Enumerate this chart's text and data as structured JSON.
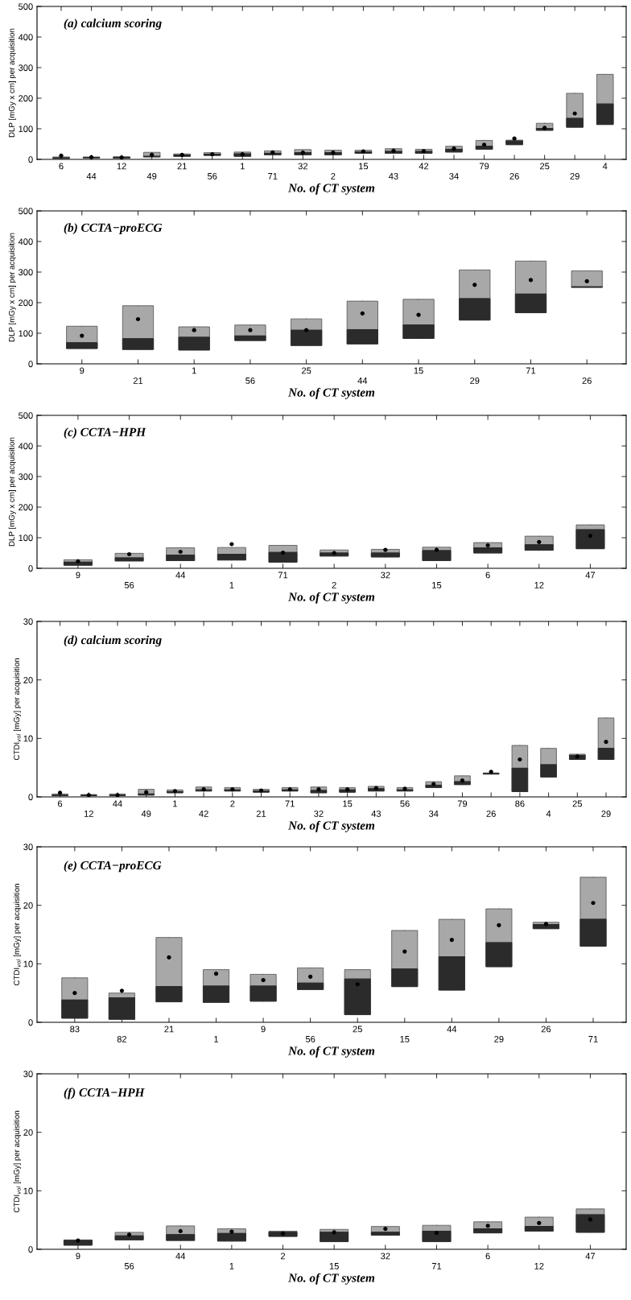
{
  "chart_data": [
    {
      "type": "box",
      "title": "(a) calcium scoring",
      "xlabel": "No. of CT system",
      "ylabel": "DLP [mGy x cm] per acquisition",
      "marker": "circle",
      "ylim": [
        0,
        500
      ],
      "yticks": [
        0,
        100,
        200,
        300,
        400,
        500
      ],
      "categories": [
        "6",
        "44",
        "12",
        "49",
        "21",
        "56",
        "1",
        "71",
        "32",
        "2",
        "15",
        "43",
        "42",
        "34",
        "79",
        "26",
        "25",
        "29",
        "4"
      ],
      "series": [
        {
          "color": "#a8a8a8",
          "boxes": [
            {
              "low": 3,
              "q1": 3,
              "median": 5,
              "q3": 8,
              "high": 8,
              "mean": 12
            },
            {
              "low": 5,
              "q1": 5,
              "median": 6,
              "q3": 8,
              "high": 8,
              "mean": 7
            },
            {
              "low": 4,
              "q1": 4,
              "median": 6,
              "q3": 9,
              "high": 9,
              "mean": 6
            },
            {
              "low": 8,
              "q1": 8,
              "median": 10,
              "q3": 23,
              "high": 23,
              "mean": 15
            },
            {
              "low": 10,
              "q1": 10,
              "median": 14,
              "q3": 18,
              "high": 18,
              "mean": 15
            },
            {
              "low": 13,
              "q1": 13,
              "median": 17,
              "q3": 22,
              "high": 22,
              "mean": 17
            },
            {
              "low": 10,
              "q1": 10,
              "median": 18,
              "q3": 24,
              "high": 24,
              "mean": 17
            },
            {
              "low": 15,
              "q1": 15,
              "median": 20,
              "q3": 28,
              "high": 28,
              "mean": 23
            },
            {
              "low": 15,
              "q1": 15,
              "median": 22,
              "q3": 32,
              "high": 32,
              "mean": 22
            },
            {
              "low": 15,
              "q1": 15,
              "median": 22,
              "q3": 30,
              "high": 30,
              "mean": 22
            },
            {
              "low": 20,
              "q1": 20,
              "median": 24,
              "q3": 30,
              "high": 30,
              "mean": 26
            },
            {
              "low": 20,
              "q1": 20,
              "median": 26,
              "q3": 35,
              "high": 35,
              "mean": 28
            },
            {
              "low": 20,
              "q1": 20,
              "median": 26,
              "q3": 33,
              "high": 33,
              "mean": 27
            },
            {
              "low": 24,
              "q1": 24,
              "median": 33,
              "q3": 43,
              "high": 43,
              "mean": 35
            },
            {
              "low": 33,
              "q1": 33,
              "median": 43,
              "q3": 62,
              "high": 62,
              "mean": 48
            },
            {
              "low": 48,
              "q1": 48,
              "median": 60,
              "q3": 63,
              "high": 63,
              "mean": 68
            },
            {
              "low": 95,
              "q1": 95,
              "median": 101,
              "q3": 118,
              "high": 118,
              "mean": 103
            },
            {
              "low": 105,
              "q1": 105,
              "median": 134,
              "q3": 216,
              "high": 216,
              "mean": 150
            },
            {
              "low": 114,
              "q1": 114,
              "median": 181,
              "q3": 278,
              "high": 278
            }
          ]
        }
      ]
    },
    {
      "type": "box",
      "title": "(b) CCTA−proECG",
      "xlabel": "No. of CT system",
      "ylabel": "DLP [mGy x cm] per acquisition",
      "marker": "circle",
      "ylim": [
        0,
        500
      ],
      "yticks": [
        0,
        100,
        200,
        300,
        400,
        500
      ],
      "categories": [
        "9",
        "21",
        "1",
        "56",
        "25",
        "44",
        "15",
        "29",
        "71",
        "26"
      ],
      "series": [
        {
          "color": "#a8a8a8",
          "boxes": [
            {
              "low": 50,
              "q1": 50,
              "median": 69,
              "q3": 123,
              "high": 123,
              "mean": 92
            },
            {
              "low": 47,
              "q1": 47,
              "median": 82,
              "q3": 190,
              "high": 190,
              "mean": 146
            },
            {
              "low": 45,
              "q1": 45,
              "median": 87,
              "q3": 121,
              "high": 121,
              "mean": 110
            },
            {
              "low": 76,
              "q1": 76,
              "median": 91,
              "q3": 127,
              "high": 127,
              "mean": 110
            },
            {
              "low": 60,
              "q1": 60,
              "median": 110,
              "q3": 147,
              "high": 147,
              "mean": 110
            },
            {
              "low": 65,
              "q1": 65,
              "median": 112,
              "q3": 205,
              "high": 205,
              "mean": 165
            },
            {
              "low": 83,
              "q1": 83,
              "median": 127,
              "q3": 211,
              "high": 211,
              "mean": 160
            },
            {
              "low": 143,
              "q1": 143,
              "median": 213,
              "q3": 307,
              "high": 307,
              "mean": 258
            },
            {
              "low": 167,
              "q1": 167,
              "median": 228,
              "q3": 336,
              "high": 336,
              "mean": 274
            },
            {
              "low": 250,
              "q1": 250,
              "median": 252,
              "q3": 304,
              "high": 304,
              "mean": 270
            }
          ]
        }
      ]
    },
    {
      "type": "box",
      "title": "(c) CCTA−HPH",
      "xlabel": "No. of CT system",
      "ylabel": "DLP [mGy x cm] per acquisition",
      "marker": "circle",
      "ylim": [
        0,
        500
      ],
      "yticks": [
        0,
        100,
        200,
        300,
        400,
        500
      ],
      "categories": [
        "9",
        "56",
        "44",
        "1",
        "71",
        "2",
        "32",
        "15",
        "6",
        "12",
        "47"
      ],
      "series": [
        {
          "color": "#a8a8a8",
          "boxes": [
            {
              "low": 10,
              "q1": 10,
              "median": 20,
              "q3": 28,
              "high": 28,
              "mean": 23
            },
            {
              "low": 24,
              "q1": 24,
              "median": 34,
              "q3": 49,
              "high": 49,
              "mean": 46
            },
            {
              "low": 25,
              "q1": 25,
              "median": 43,
              "q3": 67,
              "high": 67,
              "mean": 54
            },
            {
              "low": 27,
              "q1": 27,
              "median": 46,
              "q3": 68,
              "high": 68,
              "mean": 79
            },
            {
              "low": 20,
              "q1": 20,
              "median": 52,
              "q3": 75,
              "high": 75,
              "mean": 51
            },
            {
              "low": 40,
              "q1": 40,
              "median": 50,
              "q3": 60,
              "high": 60,
              "mean": 50
            },
            {
              "low": 37,
              "q1": 37,
              "median": 50,
              "q3": 62,
              "high": 62,
              "mean": 60
            },
            {
              "low": 25,
              "q1": 25,
              "median": 58,
              "q3": 69,
              "high": 69,
              "mean": 60
            },
            {
              "low": 50,
              "q1": 50,
              "median": 67,
              "q3": 84,
              "high": 84,
              "mean": 75
            },
            {
              "low": 59,
              "q1": 59,
              "median": 77,
              "q3": 105,
              "high": 105,
              "mean": 86
            },
            {
              "low": 64,
              "q1": 64,
              "median": 126,
              "q3": 142,
              "high": 142,
              "mean": 106
            }
          ]
        }
      ]
    },
    {
      "type": "box",
      "title": "(d) calcium scoring",
      "xlabel": "No. of CT system",
      "ylabel": "CTDI$_{vol}$ [mGy] per acquisition",
      "marker": "circle",
      "ylim": [
        0,
        30
      ],
      "yticks": [
        0,
        10,
        20,
        30
      ],
      "categories": [
        "6",
        "12",
        "44",
        "49",
        "1",
        "42",
        "2",
        "21",
        "71",
        "32",
        "15",
        "43",
        "56",
        "34",
        "79",
        "26",
        "86",
        "4",
        "25",
        "29"
      ],
      "series": [
        {
          "color": "#a8a8a8",
          "boxes": [
            {
              "low": 0.2,
              "q1": 0.2,
              "median": 0.3,
              "q3": 0.5,
              "high": 0.5,
              "mean": 0.7
            },
            {
              "low": 0.2,
              "q1": 0.2,
              "median": 0.3,
              "q3": 0.4,
              "high": 0.4,
              "mean": 0.3
            },
            {
              "low": 0.2,
              "q1": 0.2,
              "median": 0.3,
              "q3": 0.5,
              "high": 0.5,
              "mean": 0.3
            },
            {
              "low": 0.3,
              "q1": 0.3,
              "median": 0.5,
              "q3": 1.3,
              "high": 1.3,
              "mean": 0.8
            },
            {
              "low": 0.7,
              "q1": 0.7,
              "median": 0.9,
              "q3": 1.2,
              "high": 1.2,
              "mean": 1.0
            },
            {
              "low": 1.0,
              "q1": 1.0,
              "median": 1.2,
              "q3": 1.7,
              "high": 1.7,
              "mean": 1.3
            },
            {
              "low": 1.0,
              "q1": 1.0,
              "median": 1.2,
              "q3": 1.6,
              "high": 1.6,
              "mean": 1.3
            },
            {
              "low": 0.8,
              "q1": 0.8,
              "median": 1.0,
              "q3": 1.3,
              "high": 1.3,
              "mean": 1.1
            },
            {
              "low": 1.0,
              "q1": 1.0,
              "median": 1.2,
              "q3": 1.6,
              "high": 1.6,
              "mean": 1.3
            },
            {
              "low": 0.7,
              "q1": 0.7,
              "median": 1.1,
              "q3": 1.7,
              "high": 1.7,
              "mean": 1.3
            },
            {
              "low": 0.8,
              "q1": 0.8,
              "median": 1.2,
              "q3": 1.6,
              "high": 1.6,
              "mean": 1.3
            },
            {
              "low": 1.0,
              "q1": 1.0,
              "median": 1.4,
              "q3": 1.8,
              "high": 1.8,
              "mean": 1.5
            },
            {
              "low": 1.0,
              "q1": 1.0,
              "median": 1.2,
              "q3": 1.6,
              "high": 1.6,
              "mean": 1.4
            },
            {
              "low": 1.6,
              "q1": 1.6,
              "median": 2.0,
              "q3": 2.6,
              "high": 2.6,
              "mean": 2.2
            },
            {
              "low": 2.1,
              "q1": 2.1,
              "median": 2.6,
              "q3": 3.6,
              "high": 3.6,
              "mean": 2.8
            },
            {
              "low": 3.9,
              "q1": 3.9,
              "median": 4.0,
              "q3": 4.1,
              "high": 4.1,
              "mean": 4.3
            },
            {
              "low": 0.9,
              "q1": 0.9,
              "median": 4.9,
              "q3": 8.8,
              "high": 8.8,
              "mean": 6.4
            },
            {
              "low": 3.4,
              "q1": 3.4,
              "median": 5.5,
              "q3": 8.3,
              "high": 8.3
            },
            {
              "low": 6.4,
              "q1": 6.4,
              "median": 7.1,
              "q3": 7.3,
              "high": 7.3,
              "mean": 6.9
            },
            {
              "low": 6.4,
              "q1": 6.4,
              "median": 8.3,
              "q3": 13.5,
              "high": 13.5,
              "mean": 9.4
            }
          ]
        }
      ]
    },
    {
      "type": "box",
      "title": "(e) CCTA−proECG",
      "xlabel": "No. of CT system",
      "ylabel": "CTDI$_{vol}$ [mGy] per acquisition",
      "marker": "circle",
      "ylim": [
        0,
        30
      ],
      "yticks": [
        0,
        10,
        20,
        30
      ],
      "categories": [
        "83",
        "82",
        "21",
        "1",
        "9",
        "56",
        "25",
        "15",
        "44",
        "29",
        "26",
        "71"
      ],
      "series": [
        {
          "color": "#a8a8a8",
          "boxes": [
            {
              "low": 0.7,
              "q1": 0.7,
              "median": 3.8,
              "q3": 7.6,
              "high": 7.6,
              "mean": 5.0
            },
            {
              "low": 0.5,
              "q1": 0.5,
              "median": 4.2,
              "q3": 5.0,
              "high": 5.0,
              "mean": 5.4
            },
            {
              "low": 3.5,
              "q1": 3.5,
              "median": 6.1,
              "q3": 14.5,
              "high": 14.5,
              "mean": 11.1
            },
            {
              "low": 3.4,
              "q1": 3.4,
              "median": 6.2,
              "q3": 9.0,
              "high": 9.0,
              "mean": 8.3
            },
            {
              "low": 3.6,
              "q1": 3.6,
              "median": 6.2,
              "q3": 8.2,
              "high": 8.2,
              "mean": 7.2
            },
            {
              "low": 5.6,
              "q1": 5.6,
              "median": 6.7,
              "q3": 9.3,
              "high": 9.3,
              "mean": 7.8
            },
            {
              "low": 1.3,
              "q1": 1.3,
              "median": 7.4,
              "q3": 9.0,
              "high": 9.0,
              "mean": 6.5
            },
            {
              "low": 6.1,
              "q1": 6.1,
              "median": 9.1,
              "q3": 15.7,
              "high": 15.7,
              "mean": 12.1
            },
            {
              "low": 5.5,
              "q1": 5.5,
              "median": 11.2,
              "q3": 17.6,
              "high": 17.6,
              "mean": 14.1
            },
            {
              "low": 9.5,
              "q1": 9.5,
              "median": 13.6,
              "q3": 19.4,
              "high": 19.4,
              "mean": 16.6
            },
            {
              "low": 16.0,
              "q1": 16.0,
              "median": 16.7,
              "q3": 17.1,
              "high": 17.1,
              "mean": 16.8
            },
            {
              "low": 13.0,
              "q1": 13.0,
              "median": 17.6,
              "q3": 24.8,
              "high": 24.8,
              "mean": 20.4
            }
          ]
        }
      ]
    },
    {
      "type": "box",
      "title": "(f) CCTA−HPH",
      "xlabel": "No. of CT system",
      "ylabel": "CTDI$_{vol}$ [mGy] per acquisition",
      "marker": "circle",
      "ylim": [
        0,
        30
      ],
      "yticks": [
        0,
        10,
        20,
        30
      ],
      "categories": [
        "9",
        "56",
        "44",
        "1",
        "2",
        "15",
        "32",
        "71",
        "6",
        "12",
        "47"
      ],
      "series": [
        {
          "color": "#a8a8a8",
          "boxes": [
            {
              "low": 0.7,
              "q1": 0.7,
              "median": 1.5,
              "q3": 1.6,
              "high": 1.6,
              "mean": 1.5
            },
            {
              "low": 1.6,
              "q1": 1.6,
              "median": 2.3,
              "q3": 2.9,
              "high": 2.9,
              "mean": 2.5
            },
            {
              "low": 1.5,
              "q1": 1.5,
              "median": 2.5,
              "q3": 4.0,
              "high": 4.0,
              "mean": 3.1
            },
            {
              "low": 1.4,
              "q1": 1.4,
              "median": 2.7,
              "q3": 3.5,
              "high": 3.5,
              "mean": 3.0
            },
            {
              "low": 2.2,
              "q1": 2.2,
              "median": 2.9,
              "q3": 3.1,
              "high": 3.1,
              "mean": 2.7
            },
            {
              "low": 1.3,
              "q1": 1.3,
              "median": 2.9,
              "q3": 3.4,
              "high": 3.4,
              "mean": 2.9
            },
            {
              "low": 2.4,
              "q1": 2.4,
              "median": 2.9,
              "q3": 3.9,
              "high": 3.9,
              "mean": 3.5
            },
            {
              "low": 1.3,
              "q1": 1.3,
              "median": 3.1,
              "q3": 4.1,
              "high": 4.1,
              "mean": 2.8
            },
            {
              "low": 2.8,
              "q1": 2.8,
              "median": 3.5,
              "q3": 4.7,
              "high": 4.7,
              "mean": 4.0
            },
            {
              "low": 3.1,
              "q1": 3.1,
              "median": 3.9,
              "q3": 5.5,
              "high": 5.5,
              "mean": 4.5
            },
            {
              "low": 2.9,
              "q1": 2.9,
              "median": 5.9,
              "q3": 6.9,
              "high": 6.9,
              "mean": 5.1
            }
          ]
        }
      ]
    }
  ]
}
